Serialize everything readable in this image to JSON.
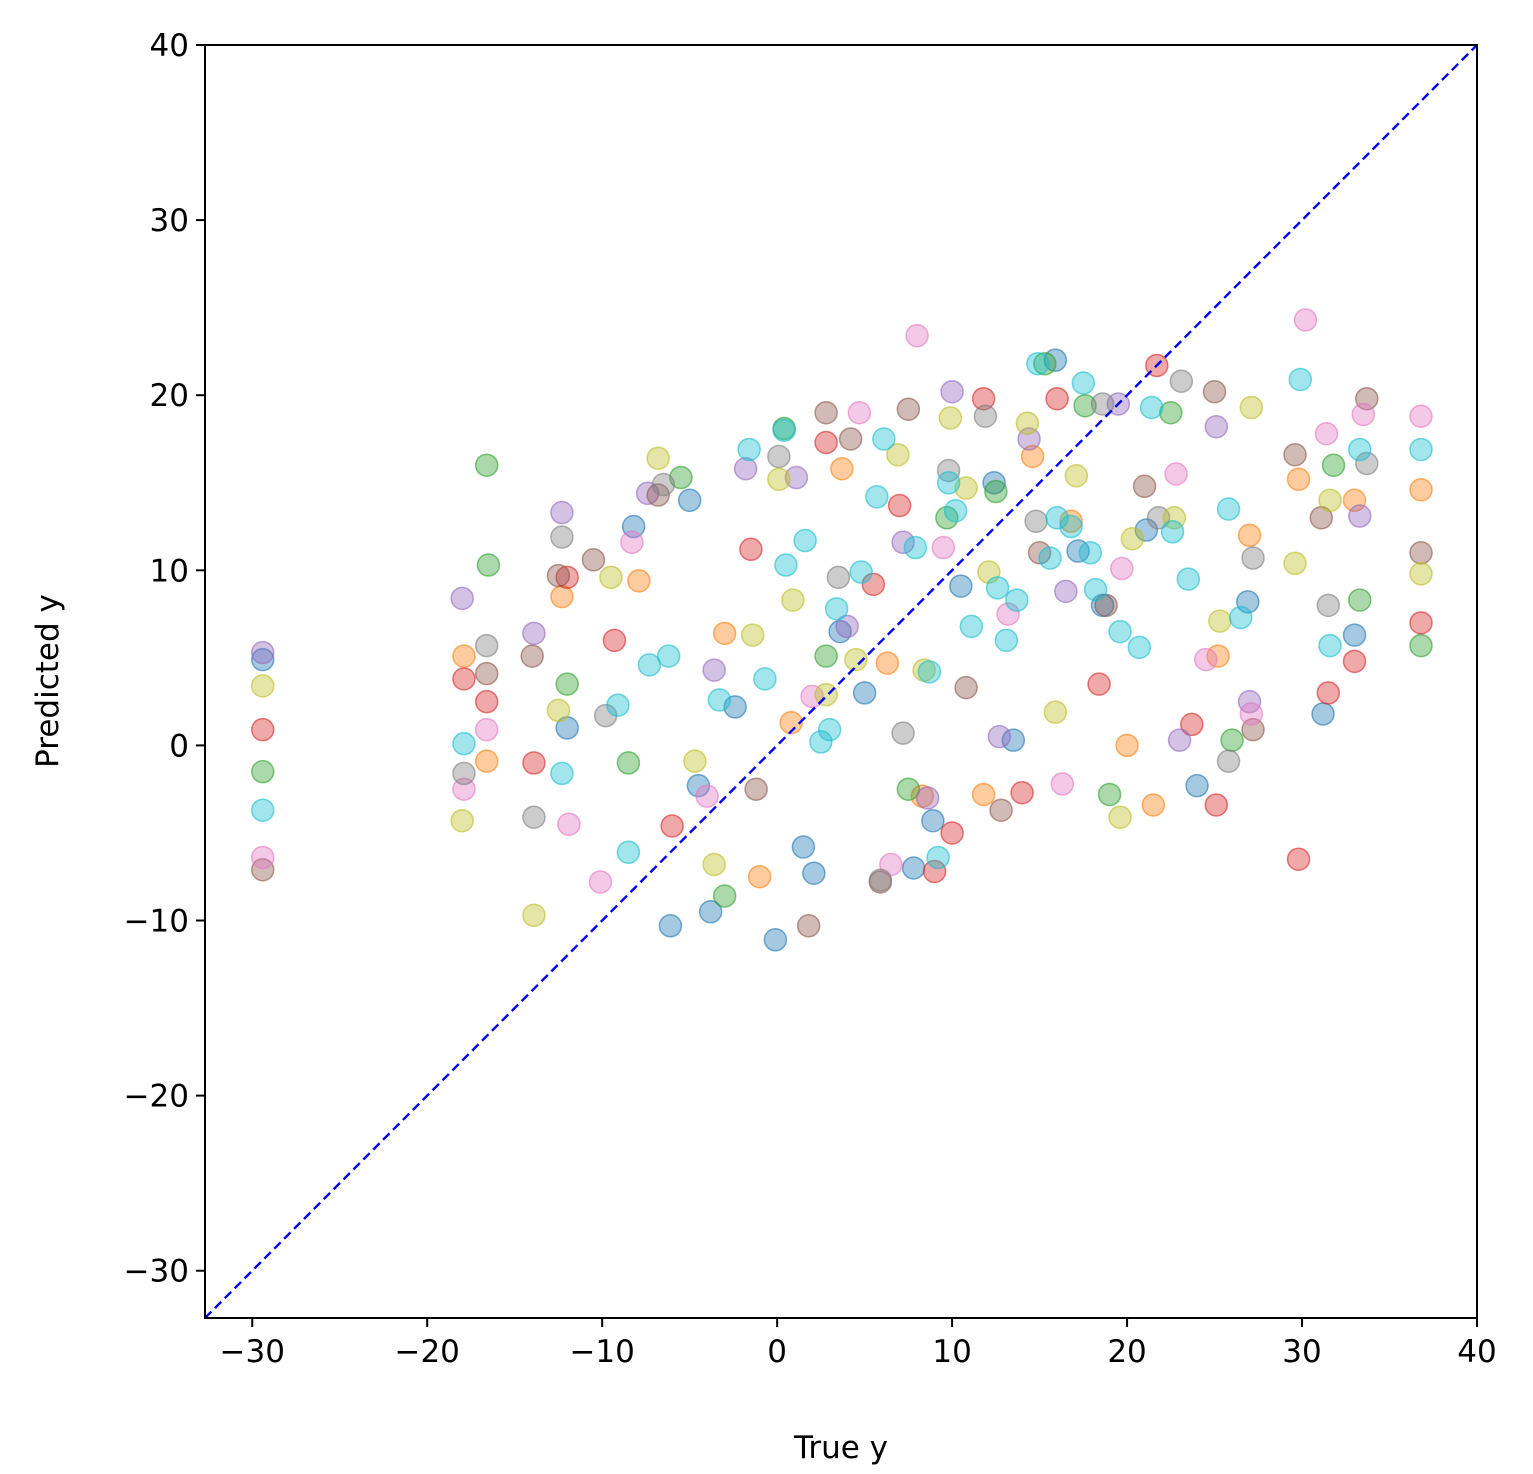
{
  "chart_data": {
    "type": "scatter",
    "title": "",
    "xlabel": "True y",
    "ylabel": "Predicted y",
    "xlim": [
      -32.7,
      40
    ],
    "ylim": [
      -32.7,
      40
    ],
    "xticks": [
      -30,
      -20,
      -10,
      0,
      10,
      20,
      30,
      40
    ],
    "yticks": [
      -30,
      -20,
      -10,
      0,
      10,
      20,
      30,
      40
    ],
    "xtick_labels": [
      "−30",
      "−20",
      "−10",
      "0",
      "10",
      "20",
      "30",
      "40"
    ],
    "ytick_labels": [
      "−30",
      "−20",
      "−10",
      "0",
      "10",
      "20",
      "30",
      "40"
    ],
    "grid": false,
    "legend": "none",
    "marker_alpha": 0.4,
    "reference_line": {
      "style": "dashed",
      "color": "#0000ff",
      "from": [
        -32.7,
        -32.7
      ],
      "to": [
        40,
        40
      ]
    },
    "series_colors": [
      "#1f77b4",
      "#ff7f0e",
      "#2ca02c",
      "#d62728",
      "#9467bd",
      "#8c564b",
      "#e377c2",
      "#7f7f7f",
      "#bcbd22",
      "#17becf"
    ],
    "series": [
      {
        "color": "#1f77b4",
        "x": [
          -29.4,
          -6.1,
          -3.8,
          -0.1,
          2.1,
          8.9,
          -5.0,
          31.2,
          33.0,
          24.0,
          -12.0,
          -8.2,
          5.0,
          10.5,
          15.9,
          1.5,
          -2.4,
          7.8,
          12.4,
          18.6,
          21.1,
          -4.5,
          3.6,
          26.9,
          13.5,
          17.2
        ],
        "y": [
          4.9,
          -10.3,
          -9.5,
          -11.1,
          -7.3,
          -4.3,
          14.0,
          1.8,
          6.3,
          -2.3,
          1.0,
          12.5,
          3.0,
          9.1,
          22.0,
          -5.8,
          2.2,
          -7.0,
          15.0,
          8.0,
          12.3,
          -2.3,
          6.5,
          8.2,
          0.3,
          11.1
        ]
      },
      {
        "color": "#ff7f0e",
        "x": [
          -17.9,
          -16.6,
          -12.3,
          25.2,
          21.5,
          33.0,
          36.8,
          -1.0,
          8.3,
          14.6,
          3.7,
          -7.9,
          11.8,
          20.0,
          27.0,
          6.3,
          -3.0,
          16.8,
          29.8,
          0.8
        ],
        "y": [
          5.1,
          -0.9,
          8.5,
          5.1,
          -3.4,
          14.0,
          14.6,
          -7.5,
          -2.9,
          16.5,
          15.8,
          9.4,
          -2.8,
          0.0,
          12.0,
          4.7,
          6.4,
          12.8,
          15.2,
          1.3
        ]
      },
      {
        "color": "#2ca02c",
        "x": [
          -29.4,
          -16.6,
          -16.5,
          -3.0,
          0.4,
          -5.5,
          7.5,
          12.5,
          17.6,
          19.0,
          31.8,
          36.8,
          33.3,
          -12.0,
          26.0,
          2.8,
          9.7,
          -8.5,
          22.5,
          15.3
        ],
        "y": [
          -1.5,
          16.0,
          10.3,
          -8.6,
          18.1,
          15.3,
          -2.5,
          14.5,
          19.4,
          -2.8,
          16.0,
          5.7,
          8.3,
          3.5,
          0.3,
          5.1,
          13.0,
          -1.0,
          19.0,
          21.8
        ]
      },
      {
        "color": "#d62728",
        "x": [
          -29.4,
          -17.9,
          -16.6,
          -13.9,
          9.0,
          29.8,
          31.5,
          25.1,
          33.0,
          36.8,
          -12.0,
          21.7,
          16.0,
          2.8,
          -6.0,
          14.0,
          10.0,
          -1.5,
          5.5,
          18.4,
          11.8,
          -9.3,
          23.7,
          7.0
        ],
        "y": [
          0.9,
          3.8,
          2.5,
          -1.0,
          -7.2,
          -6.5,
          3.0,
          -3.4,
          4.8,
          7.0,
          9.6,
          21.7,
          19.8,
          17.3,
          -4.6,
          -2.7,
          -5.0,
          11.2,
          9.2,
          3.5,
          19.8,
          6.0,
          1.2,
          13.7
        ]
      },
      {
        "color": "#9467bd",
        "x": [
          -29.4,
          -18.0,
          -13.9,
          -12.3,
          -1.8,
          1.1,
          10.0,
          19.5,
          33.3,
          27.0,
          23.0,
          14.4,
          7.2,
          -3.6,
          4.0,
          12.7,
          -7.4,
          16.5,
          25.1,
          8.6
        ],
        "y": [
          5.3,
          8.4,
          6.4,
          13.3,
          15.8,
          15.3,
          20.2,
          19.5,
          13.1,
          2.5,
          0.3,
          17.5,
          11.6,
          4.3,
          6.8,
          0.5,
          14.4,
          8.8,
          18.2,
          -3.0
        ]
      },
      {
        "color": "#8c564b",
        "x": [
          -29.4,
          -16.6,
          -12.5,
          -10.5,
          1.8,
          2.8,
          5.9,
          7.5,
          12.8,
          25.0,
          33.7,
          31.1,
          36.8,
          27.2,
          29.6,
          -14.0,
          4.2,
          -6.8,
          18.8,
          10.8,
          21.0,
          -1.2,
          15.0
        ],
        "y": [
          -7.1,
          4.1,
          9.7,
          10.6,
          -10.3,
          19.0,
          -7.8,
          19.2,
          -3.7,
          20.2,
          19.8,
          13.0,
          11.0,
          0.9,
          16.6,
          5.1,
          17.5,
          14.3,
          8.0,
          3.3,
          14.8,
          -2.5,
          11.0
        ]
      },
      {
        "color": "#e377c2",
        "x": [
          -29.4,
          -17.9,
          -16.6,
          -11.9,
          -10.1,
          6.5,
          8.0,
          4.7,
          16.3,
          30.2,
          31.4,
          33.5,
          36.8,
          27.1,
          -8.3,
          2.0,
          13.2,
          19.7,
          22.8,
          -4.0,
          9.5,
          24.5
        ],
        "y": [
          -6.4,
          -2.5,
          0.9,
          -4.5,
          -7.8,
          -6.8,
          23.4,
          19.0,
          -2.2,
          24.3,
          17.8,
          18.9,
          18.8,
          1.8,
          11.6,
          2.8,
          7.5,
          10.1,
          15.5,
          -2.9,
          11.3,
          4.9
        ]
      },
      {
        "color": "#7f7f7f",
        "x": [
          -17.9,
          -16.6,
          -13.9,
          -12.3,
          0.1,
          5.9,
          11.9,
          23.1,
          25.8,
          33.7,
          31.5,
          27.2,
          18.6,
          9.8,
          3.5,
          -6.5,
          14.8,
          7.2,
          -9.8,
          21.8
        ],
        "y": [
          -1.6,
          5.7,
          -4.1,
          11.9,
          16.5,
          -7.7,
          18.8,
          20.8,
          -0.9,
          16.1,
          8.0,
          10.7,
          19.5,
          15.7,
          9.6,
          14.9,
          12.8,
          0.7,
          1.7,
          13.0
        ]
      },
      {
        "color": "#bcbd22",
        "x": [
          -29.4,
          -18.0,
          -13.9,
          -12.5,
          -3.6,
          0.1,
          6.9,
          9.9,
          14.3,
          19.6,
          27.1,
          29.6,
          31.6,
          36.8,
          -6.8,
          2.8,
          4.5,
          12.1,
          17.1,
          22.7,
          -1.4,
          8.4,
          -9.5,
          15.9,
          25.3,
          10.8,
          -4.7,
          20.3,
          0.9
        ],
        "y": [
          3.4,
          -4.3,
          -9.7,
          2.0,
          -6.8,
          15.2,
          16.6,
          18.7,
          18.4,
          -4.1,
          19.3,
          10.4,
          14.0,
          9.8,
          16.4,
          2.9,
          4.9,
          9.9,
          15.4,
          13.0,
          6.3,
          4.3,
          9.6,
          1.9,
          7.1,
          14.7,
          -0.9,
          11.8,
          8.3
        ]
      },
      {
        "color": "#17becf",
        "x": [
          -29.4,
          -17.9,
          -12.3,
          -8.5,
          -1.6,
          0.4,
          6.1,
          9.2,
          14.9,
          17.5,
          21.4,
          29.9,
          31.6,
          33.3,
          36.8,
          13.7,
          16.0,
          19.6,
          2.5,
          4.8,
          7.9,
          11.1,
          -3.3,
          -6.2,
          10.2,
          15.6,
          18.2,
          22.6,
          25.8,
          0.5,
          3.4,
          8.7,
          12.6,
          -9.1,
          20.7,
          1.6,
          5.7,
          13.1,
          16.8,
          -7.3,
          23.5,
          26.5,
          -0.7,
          9.8,
          3.0,
          17.9
        ],
        "y": [
          -3.7,
          0.1,
          -1.6,
          -6.1,
          16.9,
          18.0,
          17.5,
          -6.4,
          21.8,
          20.7,
          19.3,
          20.9,
          5.7,
          16.9,
          16.9,
          8.3,
          13.0,
          6.5,
          0.2,
          9.9,
          11.3,
          6.8,
          2.6,
          5.1,
          13.4,
          10.7,
          8.9,
          12.2,
          13.5,
          10.3,
          7.8,
          4.2,
          9.0,
          2.3,
          5.6,
          11.7,
          14.2,
          6.0,
          12.5,
          4.6,
          9.5,
          7.3,
          3.8,
          15.0,
          0.9,
          11.0
        ]
      }
    ]
  }
}
